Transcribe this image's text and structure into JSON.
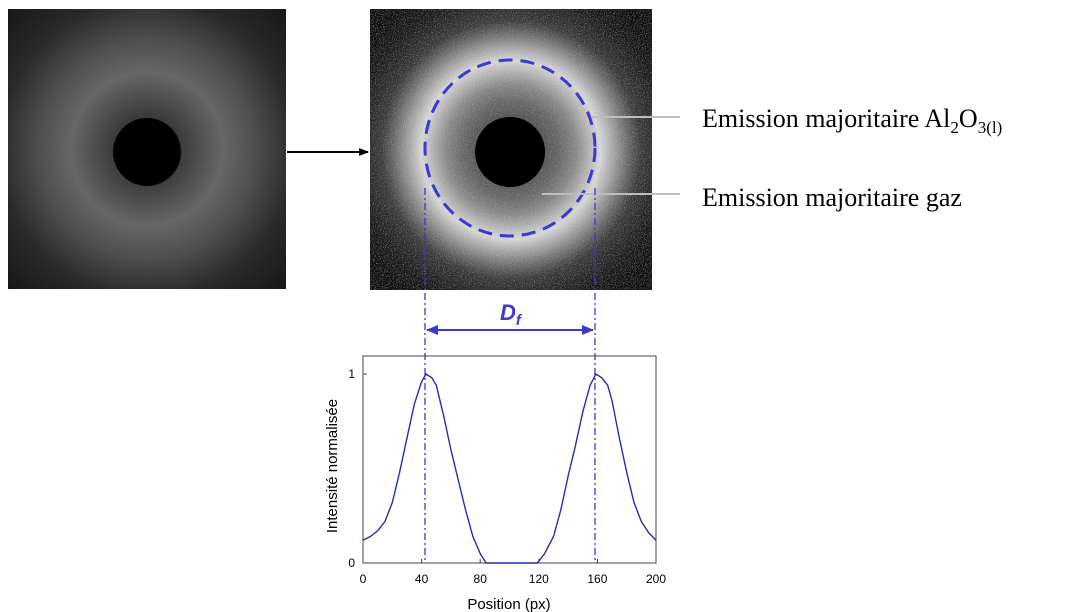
{
  "annotations": {
    "emission_liquid_prefix": "Emission majoritaire Al",
    "emission_liquid_sub1": "2",
    "emission_liquid_O": "O",
    "emission_liquid_sub2": "3(l)",
    "emission_gas": "Emission majoritaire gaz",
    "diameter_label": "D",
    "diameter_label_sub": "f"
  },
  "colors": {
    "annotation_blue": "#3a3ad0",
    "curve_blue": "#2b2bb0",
    "leader_gray": "#bdbdbd"
  },
  "chart_data": {
    "type": "line",
    "xlabel": "Position (px)",
    "ylabel": "Intensité normalisée",
    "xlim": [
      0,
      200
    ],
    "ylim": [
      0,
      1
    ],
    "xticks": [
      0,
      40,
      80,
      120,
      160,
      200
    ],
    "yticks": [
      0,
      1
    ],
    "x": [
      0,
      5,
      10,
      15,
      20,
      25,
      30,
      35,
      40,
      43,
      47,
      50,
      55,
      60,
      65,
      70,
      75,
      80,
      84,
      90,
      100,
      110,
      119,
      124,
      130,
      135,
      140,
      145,
      150,
      155,
      159,
      163,
      167,
      170,
      175,
      180,
      185,
      190,
      195,
      200
    ],
    "series": [
      {
        "values": [
          0.12,
          0.14,
          0.17,
          0.22,
          0.32,
          0.48,
          0.66,
          0.84,
          0.96,
          1.0,
          0.98,
          0.94,
          0.78,
          0.6,
          0.44,
          0.28,
          0.14,
          0.05,
          0.0,
          0.0,
          0.0,
          0.0,
          0.0,
          0.05,
          0.14,
          0.28,
          0.46,
          0.62,
          0.8,
          0.94,
          1.0,
          0.98,
          0.94,
          0.86,
          0.66,
          0.48,
          0.32,
          0.22,
          0.16,
          0.12
        ]
      }
    ],
    "markers_x": [
      43,
      159
    ]
  }
}
